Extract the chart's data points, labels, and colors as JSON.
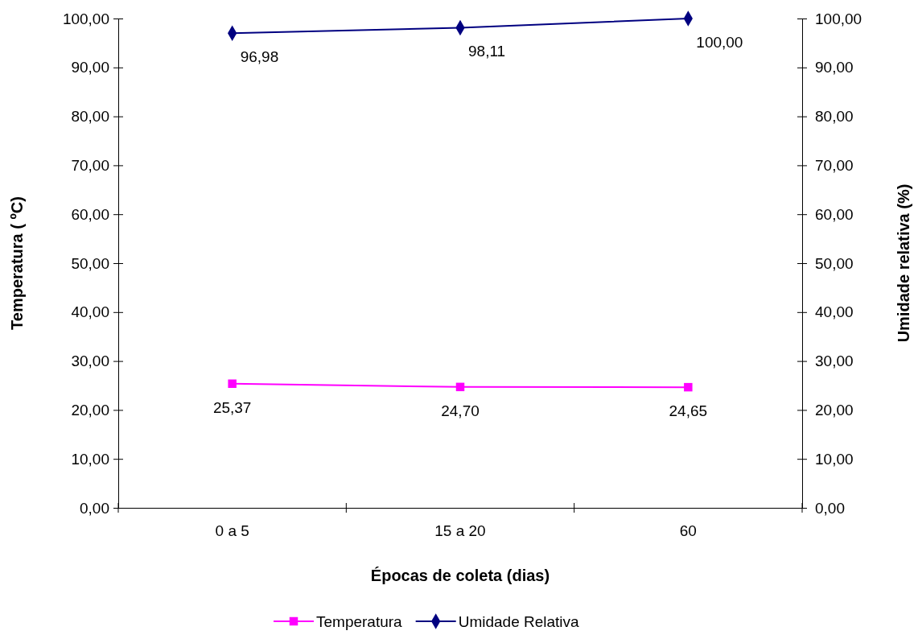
{
  "chart_data": {
    "type": "line",
    "xlabel": "Épocas de coleta (dias)",
    "ylabel": "Temperatura ( ºC)",
    "y2label": "Umidade relativa (%)",
    "categories": [
      "0 a 5",
      "15 a 20",
      "60"
    ],
    "series": [
      {
        "name": "Temperatura",
        "color": "#ff00ff",
        "marker": "square",
        "values": [
          25.37,
          24.7,
          24.65
        ],
        "value_labels": [
          "25,37",
          "24,70",
          "24,65"
        ]
      },
      {
        "name": "Umidade Relativa",
        "color": "#000080",
        "marker": "diamond",
        "axis": "y2",
        "values": [
          96.98,
          98.11,
          100.0
        ],
        "value_labels": [
          "96,98",
          "98,11",
          "100,00"
        ]
      }
    ],
    "ylim": [
      0,
      100
    ],
    "yticks": [
      {
        "value": 0,
        "label": "0,00"
      },
      {
        "value": 10,
        "label": "10,00"
      },
      {
        "value": 20,
        "label": "20,00"
      },
      {
        "value": 30,
        "label": "30,00"
      },
      {
        "value": 40,
        "label": "40,00"
      },
      {
        "value": 50,
        "label": "50,00"
      },
      {
        "value": 60,
        "label": "60,00"
      },
      {
        "value": 70,
        "label": "70,00"
      },
      {
        "value": 80,
        "label": "80,00"
      },
      {
        "value": 90,
        "label": "90,00"
      },
      {
        "value": 100,
        "label": "100,00"
      }
    ],
    "y2lim": [
      0,
      100
    ],
    "y2ticks": [
      {
        "value": 0,
        "label": "0,00"
      },
      {
        "value": 10,
        "label": "10,00"
      },
      {
        "value": 20,
        "label": "20,00"
      },
      {
        "value": 30,
        "label": "30,00"
      },
      {
        "value": 40,
        "label": "40,00"
      },
      {
        "value": 50,
        "label": "50,00"
      },
      {
        "value": 60,
        "label": "60,00"
      },
      {
        "value": 70,
        "label": "70,00"
      },
      {
        "value": 80,
        "label": "80,00"
      },
      {
        "value": 90,
        "label": "90,00"
      },
      {
        "value": 100,
        "label": "100,00"
      }
    ],
    "grid": false,
    "legend": "bottom",
    "line_style": "solid"
  }
}
